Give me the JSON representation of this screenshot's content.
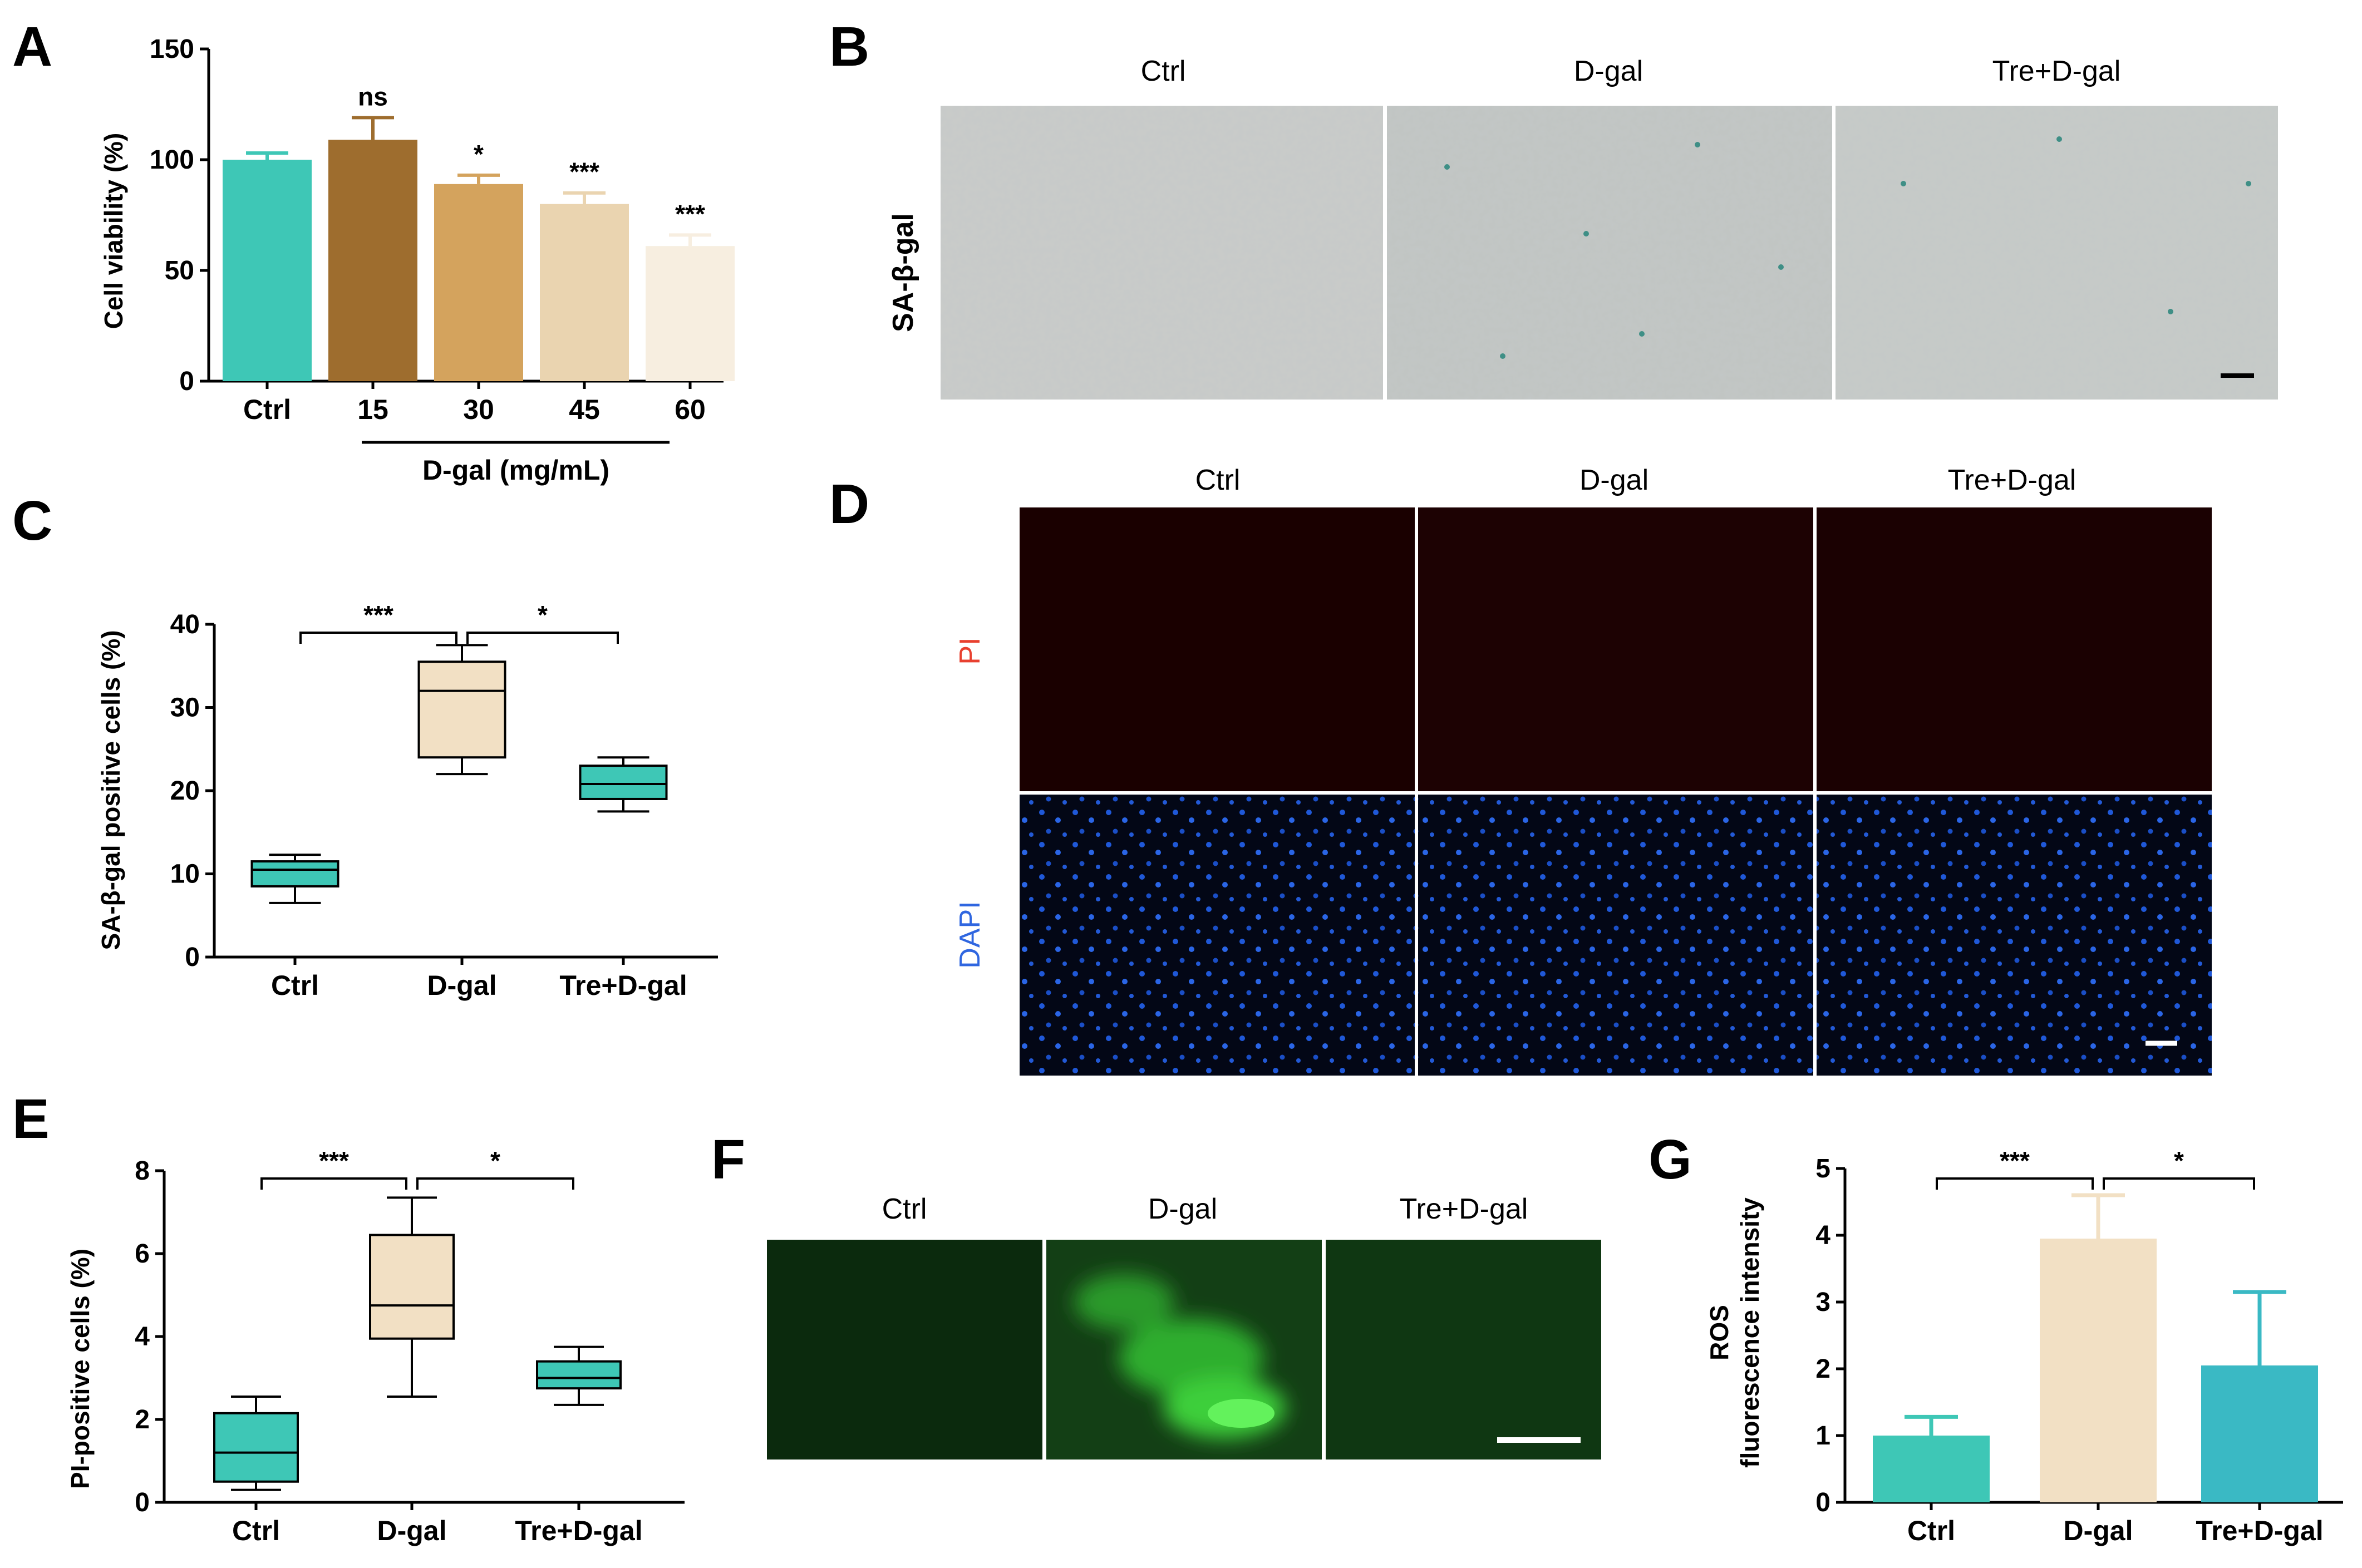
{
  "panels": {
    "A": {
      "label": "A",
      "chart_data": {
        "type": "bar",
        "categories": [
          "Ctrl",
          "15",
          "30",
          "45",
          "60"
        ],
        "values": [
          100,
          109,
          89,
          80,
          61
        ],
        "errors": [
          3,
          10,
          4,
          5,
          5
        ],
        "significance": [
          "",
          "ns",
          "*",
          "***",
          "***"
        ],
        "ylabel": "Cell viability (%)",
        "ylim": [
          0,
          150
        ],
        "yticks": [
          "0",
          "50",
          "100",
          "150"
        ],
        "group_label": "D-gal (mg/mL)",
        "colors": [
          "#3ec7b6",
          "#9e6d2e",
          "#d4a35d",
          "#ead4b0",
          "#f7eee0"
        ]
      }
    },
    "B": {
      "label": "B",
      "columns": [
        "Ctrl",
        "D-gal",
        "Tre+D-gal"
      ],
      "row_label": "SA-β-gal"
    },
    "C": {
      "label": "C",
      "chart_data": {
        "type": "box",
        "categories": [
          "Ctrl",
          "D-gal",
          "Tre+D-gal"
        ],
        "boxes": [
          {
            "min": 6.5,
            "q1": 8.5,
            "median": 10.5,
            "q3": 11.5,
            "max": 12.3
          },
          {
            "min": 22,
            "q1": 24,
            "median": 32,
            "q3": 35.5,
            "max": 37.5
          },
          {
            "min": 17.5,
            "q1": 19,
            "median": 20.8,
            "q3": 23,
            "max": 24
          }
        ],
        "comparisons": [
          {
            "from": 0,
            "to": 1,
            "label": "***"
          },
          {
            "from": 1,
            "to": 2,
            "label": "*"
          }
        ],
        "ylabel": "SA-β-gal positive cells (%)",
        "ylim": [
          0,
          40
        ],
        "yticks": [
          "0",
          "10",
          "20",
          "30",
          "40"
        ],
        "colors": [
          "#3ec7b6",
          "#f2e0c4",
          "#3ec7b6"
        ]
      }
    },
    "D": {
      "label": "D",
      "columns": [
        "Ctrl",
        "D-gal",
        "Tre+D-gal"
      ],
      "rows": [
        "PI",
        "DAPI"
      ],
      "row_colors": [
        "#e8402f",
        "#2f66e0"
      ]
    },
    "E": {
      "label": "E",
      "chart_data": {
        "type": "box",
        "categories": [
          "Ctrl",
          "D-gal",
          "Tre+D-gal"
        ],
        "boxes": [
          {
            "min": 0.3,
            "q1": 0.5,
            "median": 1.2,
            "q3": 2.15,
            "max": 2.55
          },
          {
            "min": 2.55,
            "q1": 3.95,
            "median": 4.75,
            "q3": 6.45,
            "max": 7.35
          },
          {
            "min": 2.35,
            "q1": 2.75,
            "median": 3.0,
            "q3": 3.4,
            "max": 3.75
          }
        ],
        "comparisons": [
          {
            "from": 0,
            "to": 1,
            "label": "***"
          },
          {
            "from": 1,
            "to": 2,
            "label": "*"
          }
        ],
        "ylabel": "PI-positive cells (%)",
        "ylim": [
          0,
          8
        ],
        "yticks": [
          "0",
          "2",
          "4",
          "6",
          "8"
        ],
        "colors": [
          "#3ec7b6",
          "#f2e0c4",
          "#3ec7b6"
        ]
      }
    },
    "F": {
      "label": "F",
      "columns": [
        "Ctrl",
        "D-gal",
        "Tre+D-gal"
      ]
    },
    "G": {
      "label": "G",
      "chart_data": {
        "type": "bar",
        "categories": [
          "Ctrl",
          "D-gal",
          "Tre+D-gal"
        ],
        "values": [
          1.0,
          3.95,
          2.05
        ],
        "errors": [
          0.28,
          0.65,
          1.1
        ],
        "comparisons": [
          {
            "from": 0,
            "to": 1,
            "label": "***"
          },
          {
            "from": 1,
            "to": 2,
            "label": "*"
          }
        ],
        "ylabel_lines": [
          "ROS",
          "fluorescence intensity"
        ],
        "ylim": [
          0,
          5
        ],
        "yticks": [
          "0",
          "1",
          "2",
          "3",
          "4",
          "5"
        ],
        "colors": [
          "#3ec7b6",
          "#f2e0c4",
          "#3ab9c4"
        ]
      }
    }
  }
}
